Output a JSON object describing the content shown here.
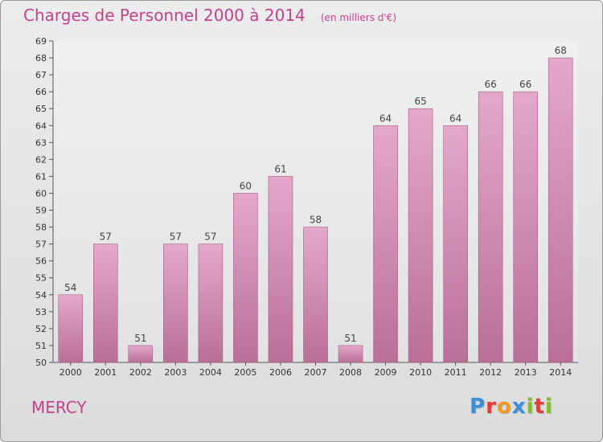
{
  "header": {
    "title": "Charges de Personnel 2000 à 2014",
    "subtitle": "(en milliers d'€)"
  },
  "footer": {
    "commune": "MERCY",
    "logo_text": "Proxiti",
    "logo_colors": [
      "#3d8ed8",
      "#e63a3a",
      "#f29b1d",
      "#3d8ed8",
      "#7cbf2f",
      "#e63a3a",
      "#7cbf2f"
    ]
  },
  "colors": {
    "accent": "#c4418e",
    "bar_top": "#e4a8cb",
    "bar_bottom": "#b96f98",
    "bar_edge": "#a05f85"
  },
  "chart_data": {
    "type": "bar",
    "title": "Charges de Personnel 2000 à 2014",
    "subtitle": "(en milliers d'€)",
    "categories": [
      "2000",
      "2001",
      "2002",
      "2003",
      "2004",
      "2005",
      "2006",
      "2007",
      "2008",
      "2009",
      "2010",
      "2011",
      "2012",
      "2013",
      "2014"
    ],
    "values": [
      54,
      57,
      51,
      57,
      57,
      60,
      61,
      58,
      51,
      64,
      65,
      64,
      66,
      66,
      68
    ],
    "ylim": [
      50,
      69
    ],
    "yticks": [
      50,
      51,
      52,
      53,
      54,
      55,
      56,
      57,
      58,
      59,
      60,
      61,
      62,
      63,
      64,
      65,
      66,
      67,
      68,
      69
    ],
    "grid": false,
    "xlabel": "",
    "ylabel": ""
  }
}
